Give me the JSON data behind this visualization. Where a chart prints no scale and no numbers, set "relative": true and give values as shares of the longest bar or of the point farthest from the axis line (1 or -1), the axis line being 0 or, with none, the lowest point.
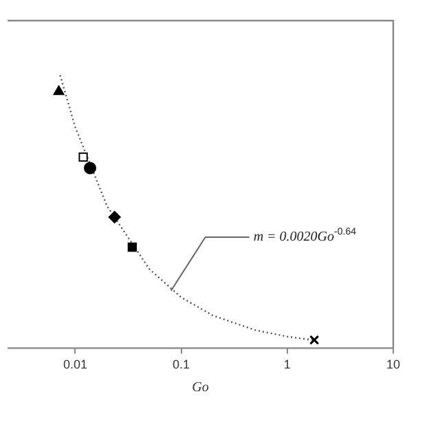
{
  "chart_data": {
    "type": "scatter",
    "xlabel": "Go",
    "log": "x",
    "relative": true,
    "grid": false,
    "legend": false,
    "xlim": [
      0.0023,
      10
    ],
    "xticks": [
      0.01,
      0.1,
      1,
      10
    ],
    "series": [
      {
        "type": "scatter",
        "color": "#000000",
        "marker": "triangle",
        "x": [
          0.007
        ],
        "values": [
          0.94
        ]
      },
      {
        "type": "scatter",
        "color": "#ffffff",
        "marker": "square",
        "x": [
          0.0119
        ],
        "values": [
          0.7
        ]
      },
      {
        "type": "scatter",
        "color": "#000000",
        "marker": "circle",
        "x": [
          0.0138
        ],
        "values": [
          0.66
        ]
      },
      {
        "type": "scatter",
        "color": "#000000",
        "marker": "diamond",
        "x": [
          0.0235
        ],
        "values": [
          0.48
        ]
      },
      {
        "type": "scatter",
        "color": "#000000",
        "marker": "square",
        "x": [
          0.0345
        ],
        "values": [
          0.37
        ]
      },
      {
        "type": "scatter",
        "color": "#000000",
        "marker": "cross",
        "x": [
          1.8
        ],
        "values": [
          0.03
        ]
      },
      {
        "type": "line",
        "color": "#555555",
        "marker": "none",
        "line_style": "dotted",
        "x": [
          0.0072,
          0.01,
          0.02,
          0.05,
          0.1,
          0.2,
          0.5,
          1,
          1.8
        ],
        "values": [
          1,
          0.81,
          0.52,
          0.29,
          0.186,
          0.119,
          0.066,
          0.0425,
          0.029
        ]
      }
    ],
    "annotations": [
      {
        "text": "m = 0.0020Go$^{-0.64}$",
        "x": 0.08,
        "y": 0.21
      }
    ]
  }
}
